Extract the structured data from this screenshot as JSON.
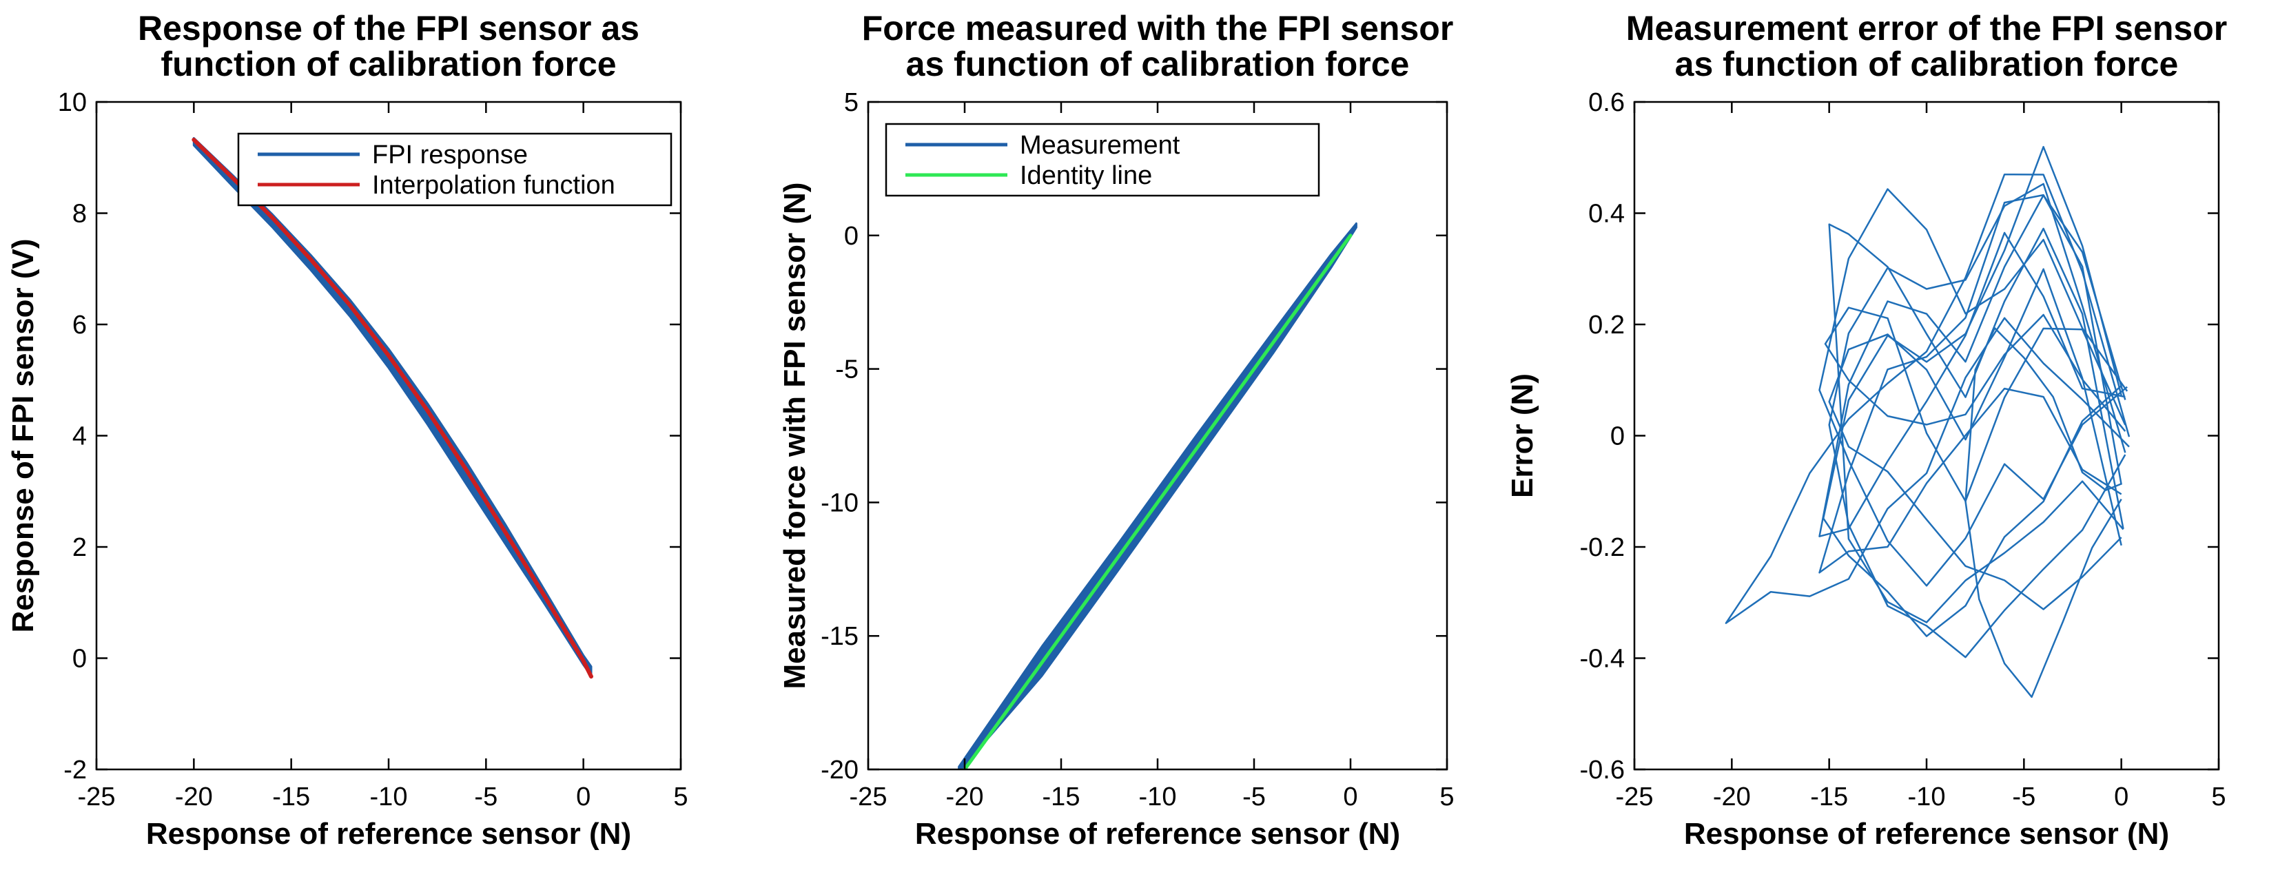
{
  "chart_data": [
    {
      "type": "line",
      "title": [
        "Response of the FPI sensor as",
        "function of calibration force"
      ],
      "xlabel": "Response of reference sensor (N)",
      "ylabel": "Response of FPI sensor (V)",
      "xlim": [
        -25,
        5
      ],
      "ylim": [
        -2,
        10
      ],
      "xticks": [
        "-25",
        "-20",
        "-15",
        "-10",
        "-5",
        "0",
        "5"
      ],
      "yticks": [
        "-2",
        "0",
        "2",
        "4",
        "6",
        "8",
        "10"
      ],
      "grid": false,
      "legend": {
        "position": "top-right",
        "entries": [
          "FPI response",
          "Interpolation function"
        ]
      },
      "series": [
        {
          "name": "FPI response",
          "color": "#1f5fa8",
          "style": "band",
          "upper": [
            [
              -20.0,
              9.35
            ],
            [
              -18.0,
              8.68
            ],
            [
              -16.0,
              7.99
            ],
            [
              -14.0,
              7.25
            ],
            [
              -12.0,
              6.45
            ],
            [
              -10.0,
              5.56
            ],
            [
              -8.0,
              4.58
            ],
            [
              -6.0,
              3.52
            ],
            [
              -4.0,
              2.4
            ],
            [
              -2.0,
              1.23
            ],
            [
              0.0,
              0.05
            ],
            [
              0.4,
              -0.15
            ]
          ],
          "lower": [
            [
              0.4,
              -0.32
            ],
            [
              0.0,
              -0.12
            ],
            [
              -2.0,
              0.98
            ],
            [
              -4.0,
              2.05
            ],
            [
              -6.0,
              3.12
            ],
            [
              -8.0,
              4.2
            ],
            [
              -10.0,
              5.22
            ],
            [
              -12.0,
              6.15
            ],
            [
              -14.0,
              6.98
            ],
            [
              -16.0,
              7.76
            ],
            [
              -18.0,
              8.48
            ],
            [
              -20.0,
              9.22
            ]
          ]
        },
        {
          "name": "Interpolation function",
          "color": "#cc1f1f",
          "x": [
            -20.0,
            -18.0,
            -16.0,
            -14.0,
            -12.0,
            -10.0,
            -8.0,
            -6.0,
            -4.0,
            -2.0,
            0.0,
            0.4
          ],
          "y": [
            9.32,
            8.63,
            7.93,
            7.17,
            6.35,
            5.44,
            4.45,
            3.38,
            2.26,
            1.12,
            -0.05,
            -0.33
          ]
        }
      ]
    },
    {
      "type": "line",
      "title": [
        "Force measured with the FPI sensor",
        "as function of calibration force"
      ],
      "xlabel": "Response of reference sensor (N)",
      "ylabel": "Measured force with FPI sensor (N)",
      "xlim": [
        -25,
        5
      ],
      "ylim": [
        -20,
        5
      ],
      "xticks": [
        "-25",
        "-20",
        "-15",
        "-10",
        "-5",
        "0",
        "5"
      ],
      "yticks": [
        "-20",
        "-15",
        "-10",
        "-5",
        "0",
        "5"
      ],
      "grid": false,
      "legend": {
        "position": "top-left",
        "entries": [
          "Measurement",
          "Identity line"
        ]
      },
      "series": [
        {
          "name": "Measurement",
          "color": "#1f5fa8",
          "style": "band",
          "upper": [
            [
              -20.3,
              -19.9
            ],
            [
              -16.0,
              -15.4
            ],
            [
              -12.0,
              -11.5
            ],
            [
              -8.0,
              -7.5
            ],
            [
              -4.0,
              -3.6
            ],
            [
              -1.0,
              -0.7
            ],
            [
              0.3,
              0.45
            ]
          ],
          "lower": [
            [
              0.3,
              0.3
            ],
            [
              -1.0,
              -1.2
            ],
            [
              -4.0,
              -4.4
            ],
            [
              -8.0,
              -8.45
            ],
            [
              -12.0,
              -12.5
            ],
            [
              -16.0,
              -16.5
            ],
            [
              -20.3,
              -20.1
            ]
          ]
        },
        {
          "name": "Identity line",
          "color": "#2ee854",
          "x": [
            -20.0,
            0.0
          ],
          "y": [
            -20.0,
            0.0
          ]
        }
      ]
    },
    {
      "type": "line",
      "title": [
        "Measurement error of the FPI sensor",
        "as function of calibration force"
      ],
      "xlabel": "Response of reference sensor (N)",
      "ylabel": "Error (N)",
      "xlim": [
        -25,
        5
      ],
      "ylim": [
        -0.6,
        0.6
      ],
      "xticks": [
        "-25",
        "-20",
        "-15",
        "-10",
        "-5",
        "0",
        "5"
      ],
      "yticks": [
        "-0.6",
        "-0.4",
        "-0.2",
        "0",
        "0.2",
        "0.4",
        "0.6"
      ],
      "grid": false,
      "legend": null,
      "series": [
        {
          "name": "Error",
          "color": "#1f6fb8",
          "style": "loops",
          "loops": [
            {
              "x": [
                0.4,
                -2,
                -4,
                -6,
                -8,
                -10,
                -12,
                -14,
                -16,
                -18,
                -20.3,
                -18,
                -16,
                -14,
                -12,
                -10,
                -8,
                -6,
                -4,
                -2,
                0.4
              ],
              "y": [
                -0.02,
                0.05,
                0.15,
                0.2,
                0.1,
                -0.05,
                -0.15,
                -0.25,
                -0.28,
                -0.3,
                -0.32,
                -0.22,
                -0.08,
                0.05,
                0.08,
                0.15,
                0.3,
                0.45,
                0.48,
                0.3,
                -0.02
              ]
            },
            {
              "x": [
                0.2,
                -2,
                -4,
                -6,
                -8,
                -10,
                -12,
                -14,
                -15.5,
                -14,
                -12,
                -10,
                -8,
                -6,
                -4,
                -2,
                0.2
              ],
              "y": [
                0.05,
                0.1,
                0.25,
                0.35,
                0.2,
                0.05,
                -0.05,
                -0.15,
                -0.2,
                0.1,
                0.25,
                0.2,
                0.15,
                0.3,
                0.42,
                0.35,
                0.05
              ]
            },
            {
              "x": [
                0,
                -2,
                -4,
                -6,
                -8,
                -10,
                -12,
                -14,
                -15.5,
                -14,
                -12,
                -10,
                -8,
                -6,
                -4,
                -2,
                0
              ],
              "y": [
                -0.1,
                -0.05,
                0.05,
                0.1,
                0.0,
                -0.1,
                -0.18,
                -0.22,
                -0.25,
                -0.05,
                0.1,
                0.15,
                0.22,
                0.4,
                0.45,
                0.3,
                -0.1
              ]
            },
            {
              "x": [
                0.1,
                -2,
                -4,
                -6,
                -8,
                -10,
                -12,
                -14,
                -15,
                -14,
                -12,
                -10,
                -8,
                -6,
                -4,
                -2,
                0.1
              ],
              "y": [
                -0.15,
                -0.1,
                -0.15,
                -0.2,
                -0.28,
                -0.32,
                -0.3,
                -0.2,
                0.4,
                0.35,
                0.3,
                0.2,
                0.05,
                0.25,
                0.38,
                0.2,
                -0.15
              ]
            },
            {
              "x": [
                0,
                -2,
                -4,
                -6,
                -8,
                -10,
                -12,
                -14,
                -15.3,
                -14,
                -12,
                -10,
                -8,
                -6,
                -4,
                -2,
                0
              ],
              "y": [
                0.08,
                0.02,
                -0.1,
                -0.2,
                -0.3,
                -0.35,
                -0.3,
                -0.2,
                -0.15,
                0.05,
                0.2,
                0.12,
                0.18,
                0.35,
                0.5,
                0.35,
                0.08
              ]
            },
            {
              "x": [
                0.2,
                -2,
                -4,
                -6,
                -8,
                -10,
                -12,
                -14,
                -15,
                -14,
                -12,
                -10,
                -8,
                -6,
                -4,
                -2,
                0.2
              ],
              "y": [
                -0.05,
                -0.15,
                -0.25,
                -0.32,
                -0.38,
                -0.36,
                -0.3,
                -0.15,
                0.0,
                0.2,
                0.3,
                0.25,
                0.3,
                0.4,
                0.45,
                0.25,
                -0.05
              ]
            },
            {
              "x": [
                0,
                -1.5,
                -3,
                -4.6,
                -6,
                -7.3,
                -8,
                -7.5,
                -6.5,
                -5,
                -3.5,
                -2,
                -0.8,
                0
              ],
              "y": [
                -0.1,
                -0.2,
                -0.35,
                -0.45,
                -0.42,
                -0.3,
                -0.1,
                0.1,
                0.2,
                0.15,
                0.05,
                -0.05,
                -0.1,
                -0.1
              ]
            },
            {
              "x": [
                0.3,
                -2,
                -4,
                -6,
                -8,
                -10,
                -12,
                -14,
                -15.5,
                -14,
                -12,
                -10,
                -8,
                -6,
                -4,
                -2,
                0.3
              ],
              "y": [
                0.1,
                0.0,
                -0.1,
                -0.05,
                -0.2,
                -0.25,
                -0.2,
                -0.05,
                0.1,
                0.3,
                0.45,
                0.38,
                0.2,
                0.28,
                0.35,
                0.18,
                0.1
              ]
            },
            {
              "x": [
                0,
                -2,
                -4,
                -6,
                -8,
                -10,
                -12,
                -14,
                -15,
                -14,
                -12,
                -10,
                -8,
                -6,
                -4,
                -2,
                0
              ],
              "y": [
                -0.2,
                -0.25,
                -0.3,
                -0.28,
                -0.22,
                -0.15,
                -0.08,
                0.0,
                0.05,
                0.15,
                0.2,
                0.1,
                0.0,
                0.15,
                0.28,
                0.12,
                -0.2
              ]
            },
            {
              "x": [
                0.2,
                -2,
                -4,
                -6,
                -8,
                -10,
                -12,
                -14,
                -15.2,
                -14,
                -12,
                -10,
                -8,
                -6,
                -4,
                -2,
                0.2
              ],
              "y": [
                0.0,
                0.12,
                0.2,
                0.15,
                0.05,
                0.0,
                0.05,
                0.1,
                0.15,
                0.25,
                0.2,
                0.0,
                -0.1,
                0.05,
                0.2,
                0.2,
                0.0
              ]
            }
          ]
        }
      ]
    }
  ]
}
